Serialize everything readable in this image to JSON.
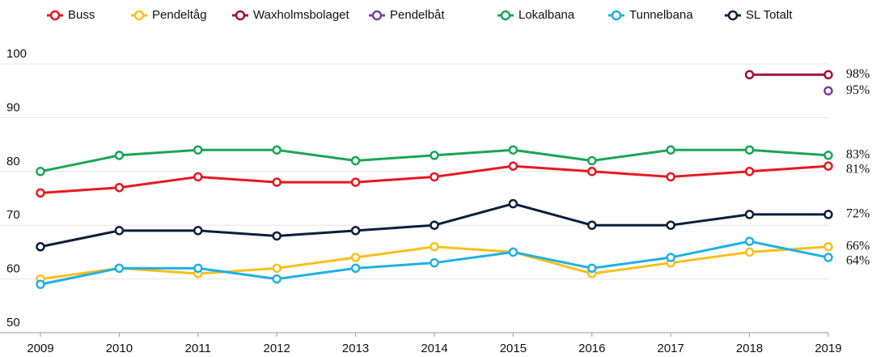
{
  "chart_data": {
    "type": "line",
    "x": [
      2009,
      2010,
      2011,
      2012,
      2013,
      2014,
      2015,
      2016,
      2017,
      2018,
      2019
    ],
    "xlim": [
      2009,
      2019
    ],
    "xticks": [
      2009,
      2010,
      2011,
      2012,
      2013,
      2014,
      2015,
      2016,
      2017,
      2018,
      2019
    ],
    "ylim": [
      50,
      100
    ],
    "yticks": [
      50,
      60,
      70,
      80,
      90,
      100
    ],
    "grid": true,
    "legend": "top",
    "series": [
      {
        "name": "Buss",
        "color": "#e8171f",
        "values": [
          76,
          77,
          79,
          78,
          78,
          79,
          81,
          80,
          79,
          80,
          81
        ],
        "value_labels": [
          null,
          null,
          null,
          null,
          null,
          null,
          null,
          null,
          null,
          null,
          "81%"
        ]
      },
      {
        "name": "Pendeltåg",
        "color": "#fbbf1a",
        "values": [
          60,
          62,
          61,
          62,
          64,
          66,
          65,
          61,
          63,
          65,
          66
        ],
        "value_labels": [
          null,
          null,
          null,
          null,
          null,
          null,
          null,
          null,
          null,
          null,
          "66%"
        ]
      },
      {
        "name": "Waxholmsbolaget",
        "color": "#a50f3c",
        "values": [
          null,
          null,
          null,
          null,
          null,
          null,
          null,
          null,
          null,
          98,
          98
        ],
        "value_labels": [
          null,
          null,
          null,
          null,
          null,
          null,
          null,
          null,
          null,
          null,
          "98%"
        ]
      },
      {
        "name": "Pendelbåt",
        "color": "#7a3fa0",
        "values": [
          null,
          null,
          null,
          null,
          null,
          null,
          null,
          null,
          null,
          null,
          95
        ],
        "value_labels": [
          null,
          null,
          null,
          null,
          null,
          null,
          null,
          null,
          null,
          null,
          "95%"
        ]
      },
      {
        "name": "Lokalbana",
        "color": "#1aa556",
        "values": [
          80,
          83,
          84,
          84,
          82,
          83,
          84,
          82,
          84,
          84,
          83
        ],
        "value_labels": [
          null,
          null,
          null,
          null,
          null,
          null,
          null,
          null,
          null,
          null,
          "83%"
        ]
      },
      {
        "name": "Tunnelbana",
        "color": "#1fb0e6",
        "values": [
          59,
          62,
          62,
          60,
          62,
          63,
          65,
          62,
          64,
          67,
          64
        ],
        "value_labels": [
          null,
          null,
          null,
          null,
          null,
          null,
          null,
          null,
          null,
          null,
          "64%"
        ]
      },
      {
        "name": "SL Totalt",
        "color": "#0b1e3a",
        "values": [
          66,
          69,
          69,
          68,
          69,
          70,
          74,
          70,
          70,
          72,
          72
        ],
        "value_labels": [
          null,
          null,
          null,
          null,
          null,
          null,
          null,
          null,
          null,
          null,
          "72%"
        ]
      }
    ]
  }
}
